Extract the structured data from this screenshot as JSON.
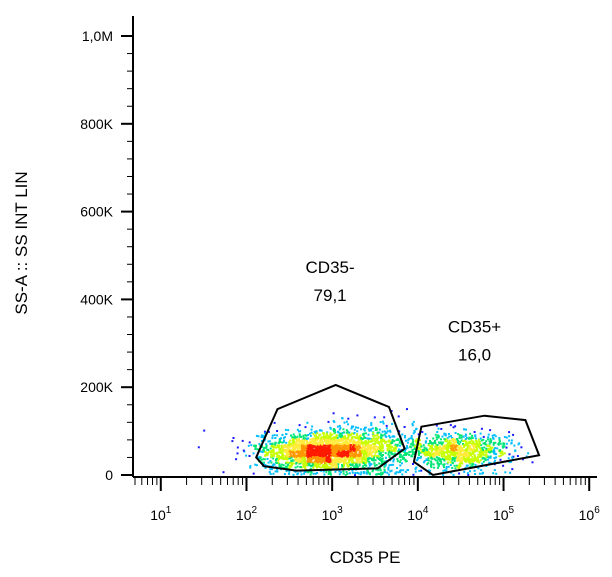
{
  "chart_data": {
    "type": "scatter",
    "subtype": "flow-cytometry-density-plot",
    "xlabel": "CD35 PE",
    "ylabel": "SS-A :: SS INT LIN",
    "x_scale": "log",
    "x_ticks": [
      {
        "base": "10",
        "exp": "1",
        "value": 10
      },
      {
        "base": "10",
        "exp": "2",
        "value": 100
      },
      {
        "base": "10",
        "exp": "3",
        "value": 1000
      },
      {
        "base": "10",
        "exp": "4",
        "value": 10000
      },
      {
        "base": "10",
        "exp": "5",
        "value": 100000
      },
      {
        "base": "10",
        "exp": "6",
        "value": 1000000
      }
    ],
    "xlim": [
      5,
      1200000
    ],
    "y_scale": "linear",
    "y_ticks": [
      {
        "label": "0",
        "value": 0
      },
      {
        "label": "200K",
        "value": 200000
      },
      {
        "label": "400K",
        "value": 400000
      },
      {
        "label": "600K",
        "value": 600000
      },
      {
        "label": "800K",
        "value": 800000
      },
      {
        "label": "1,0M",
        "value": 1000000
      }
    ],
    "ylim": [
      0,
      1000000
    ],
    "gates": [
      {
        "name": "CD35-",
        "value": "79,1",
        "polygon": [
          [
            130,
            40000
          ],
          [
            230,
            150000
          ],
          [
            1100,
            205000
          ],
          [
            4600,
            155000
          ],
          [
            7000,
            60000
          ],
          [
            3400,
            15000
          ],
          [
            380,
            10000
          ],
          [
            160,
            20000
          ]
        ]
      },
      {
        "name": "CD35+",
        "value": "16,0",
        "polygon": [
          [
            11000,
            110000
          ],
          [
            60000,
            135000
          ],
          [
            180000,
            125000
          ],
          [
            260000,
            45000
          ],
          [
            15000,
            0
          ],
          [
            9000,
            30000
          ]
        ]
      }
    ],
    "populations": [
      {
        "name": "CD35-",
        "x_center": 700,
        "y_center": 55000,
        "x_spread_log": 0.35,
        "y_spread": 22000,
        "count": 1900
      },
      {
        "name": "CD35-",
        "x_center": 2500,
        "y_center": 65000,
        "x_spread_log": 0.35,
        "y_spread": 30000,
        "count": 700
      },
      {
        "name": "CD35+",
        "x_center": 30000,
        "y_center": 55000,
        "x_spread_log": 0.3,
        "y_spread": 20000,
        "count": 900
      }
    ],
    "color_scale": [
      "#1a1aff",
      "#00bfff",
      "#00e676",
      "#c6ff00",
      "#ffeb3b",
      "#ff9800",
      "#ff1a00"
    ],
    "grid": false,
    "legend": "none"
  }
}
